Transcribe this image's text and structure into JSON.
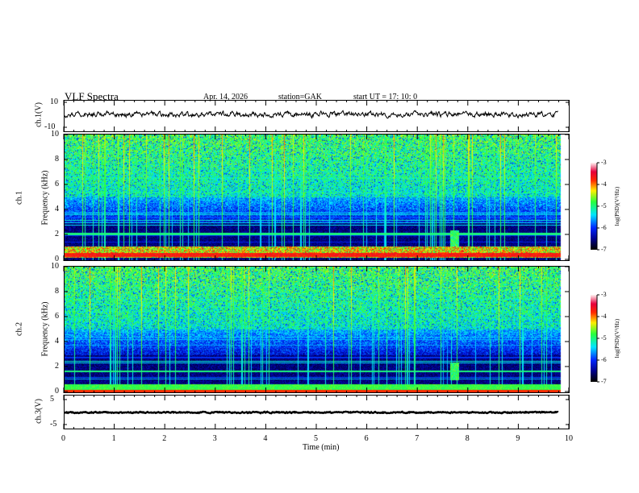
{
  "header": {
    "title": "VLF  Spectra",
    "date": "Apr. 14, 2026",
    "station": "station=GAK",
    "start": "start  UT  =    17: 10: 0"
  },
  "chart_data": [
    {
      "type": "line",
      "name": "ch1-waveform",
      "ylabel": "ch.1(V)",
      "ylim": [
        -10,
        10
      ],
      "yticks": [
        "10",
        "-10"
      ],
      "xlim": [
        0,
        10
      ],
      "approx_mean": 1.5
    },
    {
      "type": "heatmap",
      "name": "ch1-spectrogram",
      "ylabel_top": "ch.1",
      "ylabel": "Frequency  (kHz)",
      "ylim": [
        0,
        10
      ],
      "yticks": [
        "0",
        "2",
        "4",
        "6",
        "8",
        "10"
      ],
      "xlim": [
        0,
        10
      ],
      "data_end_min": 9.8,
      "colorbar": {
        "label": "log(PSD)(V²/Hz)",
        "range": [
          -7,
          -3
        ],
        "ticks": [
          "-3",
          "-4",
          "-5",
          "-6",
          "-7"
        ]
      }
    },
    {
      "type": "heatmap",
      "name": "ch2-spectrogram",
      "ylabel_top": "ch.2",
      "ylabel": "Frequency  (kHz)",
      "ylim": [
        0,
        10
      ],
      "yticks": [
        "0",
        "2",
        "4",
        "6",
        "8",
        "10"
      ],
      "xlim": [
        0,
        10
      ],
      "data_end_min": 9.8,
      "colorbar": {
        "label": "log(PSD)(V²/Hz)",
        "range": [
          -7,
          -3
        ],
        "ticks": [
          "-3",
          "-4",
          "-5",
          "-6",
          "-7"
        ]
      }
    },
    {
      "type": "line",
      "name": "ch3-waveform",
      "ylabel": "ch.3(V)",
      "ylim": [
        -5,
        5
      ],
      "yticks": [
        "5",
        "-5"
      ],
      "xlim": [
        0,
        10
      ],
      "approx_mean": -1.5
    }
  ],
  "xaxis": {
    "label": "Time  (min)",
    "ticks": [
      "0",
      "1",
      "2",
      "3",
      "4",
      "5",
      "6",
      "7",
      "8",
      "9",
      "10"
    ]
  }
}
